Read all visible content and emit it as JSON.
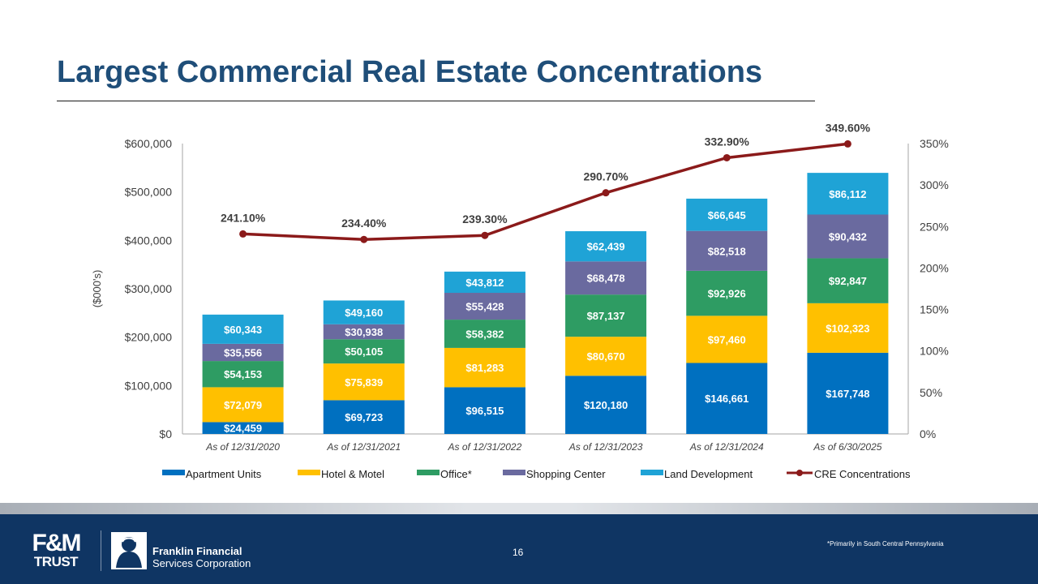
{
  "title": "Largest Commercial Real Estate Concentrations",
  "footer": {
    "page_number": "16",
    "footnote": "*Primarily in South Central Pennsylvania",
    "fm_logo_line1": "F&M",
    "fm_logo_line2": "TRUST",
    "ffc_line1": "Franklin Financial",
    "ffc_line2": "Services Corporation"
  },
  "colors": {
    "apartment": "#0070c0",
    "hotel": "#ffc000",
    "office": "#2e9c63",
    "shopping": "#6a6a9f",
    "land": "#1fa3d6",
    "cre_line": "#8b1a1a",
    "title": "#1f4e79",
    "footer_bg": "#0f3563"
  },
  "chart_data": {
    "type": "bar",
    "stacked": true,
    "categories": [
      "As of 12/31/2020",
      "As of 12/31/2021",
      "As of 12/31/2022",
      "As of 12/31/2023",
      "As of 12/31/2024",
      "As of 6/30/2025"
    ],
    "series": [
      {
        "name": "Apartment Units",
        "key": "apartment",
        "values": [
          24459,
          69723,
          96515,
          120180,
          146661,
          167748
        ],
        "labels": [
          "$24,459",
          "$69,723",
          "$96,515",
          "$120,180",
          "$146,661",
          "$167,748"
        ]
      },
      {
        "name": "Hotel & Motel",
        "key": "hotel",
        "values": [
          72079,
          75839,
          81283,
          80670,
          97460,
          102323
        ],
        "labels": [
          "$72,079",
          "$75,839",
          "$81,283",
          "$80,670",
          "$97,460",
          "$102,323"
        ]
      },
      {
        "name": "Office*",
        "key": "office",
        "values": [
          54153,
          50105,
          58382,
          87137,
          92926,
          92847
        ],
        "labels": [
          "$54,153",
          "$50,105",
          "$58,382",
          "$87,137",
          "$92,926",
          "$92,847"
        ]
      },
      {
        "name": "Shopping Center",
        "key": "shopping",
        "values": [
          35556,
          30938,
          55428,
          68478,
          82518,
          90432
        ],
        "labels": [
          "$35,556",
          "$30,938",
          "$55,428",
          "$68,478",
          "$82,518",
          "$90,432"
        ]
      },
      {
        "name": "Land Development",
        "key": "land",
        "values": [
          60343,
          49160,
          43812,
          62439,
          66645,
          86112
        ],
        "labels": [
          "$60,343",
          "$49,160",
          "$43,812",
          "$62,439",
          "$66,645",
          "$86,112"
        ]
      }
    ],
    "line_series": {
      "name": "CRE Concentrations",
      "key": "cre_line",
      "values": [
        241.1,
        234.4,
        239.3,
        290.7,
        332.9,
        349.6
      ],
      "labels": [
        "241.10%",
        "234.40%",
        "239.30%",
        "290.70%",
        "332.90%",
        "349.60%"
      ]
    },
    "ylabel": "($000's)",
    "ylim": [
      0,
      600000
    ],
    "y_ticks": [
      "$0",
      "$100,000",
      "$200,000",
      "$300,000",
      "$400,000",
      "$500,000",
      "$600,000"
    ],
    "y2lim": [
      0,
      350
    ],
    "y2_ticks": [
      "0%",
      "50%",
      "100%",
      "150%",
      "200%",
      "250%",
      "300%",
      "350%"
    ],
    "legend": [
      "Apartment Units",
      "Hotel & Motel",
      "Office*",
      "Shopping Center",
      "Land Development",
      "CRE Concentrations"
    ],
    "legend_position": "bottom"
  }
}
